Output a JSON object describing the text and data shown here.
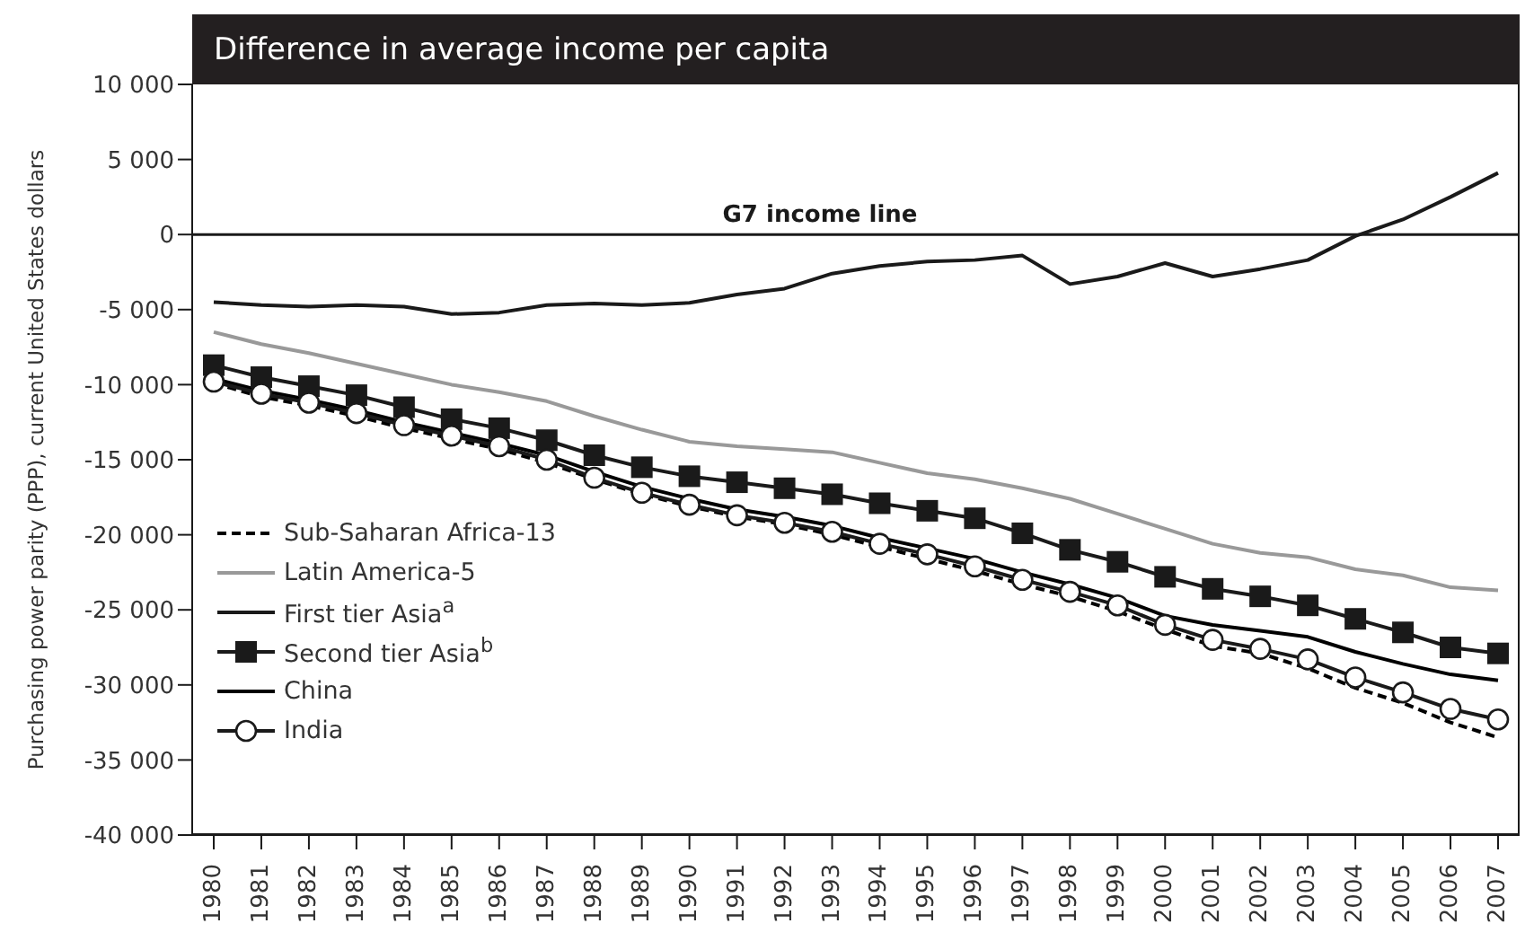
{
  "chart_data": {
    "type": "line",
    "title": "Difference in average income per capita",
    "ylabel": "Purchasing power parity (PPP), current United States dollars",
    "categories": [
      "1980",
      "1981",
      "1982",
      "1983",
      "1984",
      "1985",
      "1986",
      "1987",
      "1988",
      "1989",
      "1990",
      "1991",
      "1992",
      "1993",
      "1994",
      "1995",
      "1996",
      "1997",
      "1998",
      "1999",
      "2000",
      "2001",
      "2002",
      "2003",
      "2004",
      "2005",
      "2006",
      "2007"
    ],
    "series": [
      {
        "name": "Sub-Saharan Africa-13",
        "color": "#000000",
        "line_style": "dashed",
        "marker": "none",
        "values": [
          -9900,
          -10800,
          -11400,
          -12100,
          -12900,
          -13600,
          -14300,
          -15200,
          -16300,
          -17300,
          -18100,
          -18800,
          -19300,
          -20000,
          -20800,
          -21600,
          -22400,
          -23300,
          -24100,
          -25100,
          -26300,
          -27400,
          -27900,
          -28900,
          -30200,
          -31200,
          -32500,
          -33500
        ]
      },
      {
        "name": "Latin America-5",
        "color": "#999999",
        "line_style": "solid",
        "marker": "none",
        "values": [
          -6500,
          -7300,
          -7900,
          -8600,
          -9300,
          -10000,
          -10500,
          -11100,
          -12100,
          -13000,
          -13800,
          -14100,
          -14300,
          -14500,
          -15200,
          -15900,
          -16300,
          -16900,
          -17600,
          -18600,
          -19600,
          -20600,
          -21200,
          -21500,
          -22300,
          -22700,
          -23500,
          -23700
        ]
      },
      {
        "name": "First tier Asia$^{a}$",
        "color": "#1a1a1a",
        "line_style": "solid",
        "marker": "none",
        "values": [
          -4500,
          -4700,
          -4800,
          -4700,
          -4800,
          -5300,
          -5200,
          -4700,
          -4600,
          -4700,
          -4550,
          -4000,
          -3600,
          -2600,
          -2100,
          -1800,
          -1700,
          -1400,
          -3300,
          -2800,
          -1900,
          -2800,
          -2300,
          -1700,
          -100,
          1000,
          2500,
          4100
        ]
      },
      {
        "name": "Second tier Asia$^{b}$",
        "color": "#1a1a1a",
        "line_style": "solid",
        "marker": "square",
        "values": [
          -8700,
          -9500,
          -10100,
          -10700,
          -11500,
          -12300,
          -12900,
          -13700,
          -14700,
          -15500,
          -16100,
          -16500,
          -16900,
          -17300,
          -17900,
          -18400,
          -18900,
          -19900,
          -21000,
          -21800,
          -22800,
          -23600,
          -24100,
          -24700,
          -25600,
          -26500,
          -27500,
          -27900
        ]
      },
      {
        "name": "China",
        "color": "#000000",
        "line_style": "solid",
        "marker": "none",
        "values": [
          -9600,
          -10400,
          -11000,
          -11700,
          -12500,
          -13200,
          -13900,
          -14700,
          -15800,
          -16800,
          -17600,
          -18300,
          -18800,
          -19400,
          -20200,
          -20900,
          -21600,
          -22500,
          -23300,
          -24200,
          -25400,
          -26000,
          -26400,
          -26800,
          -27800,
          -28600,
          -29300,
          -29700
        ]
      },
      {
        "name": "India",
        "color": "#1a1a1a",
        "line_style": "solid",
        "marker": "circle",
        "values": [
          -9800,
          -10600,
          -11200,
          -11900,
          -12700,
          -13400,
          -14100,
          -15000,
          -16200,
          -17200,
          -18000,
          -18700,
          -19200,
          -19800,
          -20600,
          -21300,
          -22100,
          -23000,
          -23800,
          -24700,
          -26000,
          -27000,
          -27600,
          -28300,
          -29500,
          -30500,
          -31600,
          -32300
        ]
      }
    ],
    "ylim": [
      -40000,
      10000
    ],
    "yticks": [
      {
        "value": 10000,
        "label": "10 000"
      },
      {
        "value": 5000,
        "label": "5 000"
      },
      0,
      {
        "value": -5000,
        "label": "-5 000"
      },
      {
        "value": -10000,
        "label": "-10 000"
      },
      {
        "value": -15000,
        "label": "-15 000"
      },
      {
        "value": -20000,
        "label": "-20 000"
      },
      {
        "value": -25000,
        "label": "-25 000"
      },
      {
        "value": -30000,
        "label": "-30 000"
      },
      {
        "value": -35000,
        "label": "-35 000"
      },
      {
        "value": -40000,
        "label": "-40 000"
      }
    ],
    "ref_lines": [
      {
        "axis": "y",
        "value": 0,
        "label": "G7 income line",
        "color": "#1a1a1a"
      }
    ],
    "grid": false,
    "legend": "bottom left"
  }
}
